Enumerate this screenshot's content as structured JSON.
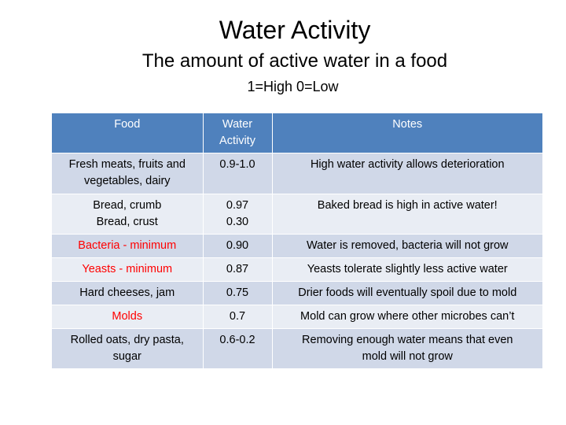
{
  "title": "Water Activity",
  "subtitle": "The amount of active water in a food",
  "scale_note": "1=High 0=Low",
  "table": {
    "headers": {
      "food": "Food",
      "water_activity": "Water\nActivity",
      "notes": "Notes"
    },
    "rows": [
      {
        "food": "Fresh meats, fruits and\nvegetables, dairy",
        "aw": "0.9-1.0",
        "notes": "High water activity allows deterioration"
      },
      {
        "food": "Bread, crumb\nBread, crust",
        "aw": "0.97\n0.30",
        "notes": "Baked bread is high in active water!"
      },
      {
        "food": "Bacteria - minimum",
        "aw": "0.90",
        "notes": "Water is removed, bacteria will not grow"
      },
      {
        "food": "Yeasts - minimum",
        "aw": "0.87",
        "notes": "Yeasts tolerate slightly less active water"
      },
      {
        "food": "Hard cheeses, jam",
        "aw": "0.75",
        "notes": "Drier foods will eventually spoil due to mold"
      },
      {
        "food": "Molds",
        "aw": "0.7",
        "notes": "Mold can grow where other microbes can’t"
      },
      {
        "food": "Rolled oats, dry pasta,\nsugar",
        "aw": "0.6-0.2",
        "notes": "Removing enough water means that even\nmold will not grow"
      }
    ],
    "colors": {
      "header_bg": "#4f81bd",
      "row_odd_bg": "#d0d8e8",
      "row_even_bg": "#e9edf4",
      "highlight_text": "#ff0000"
    }
  }
}
